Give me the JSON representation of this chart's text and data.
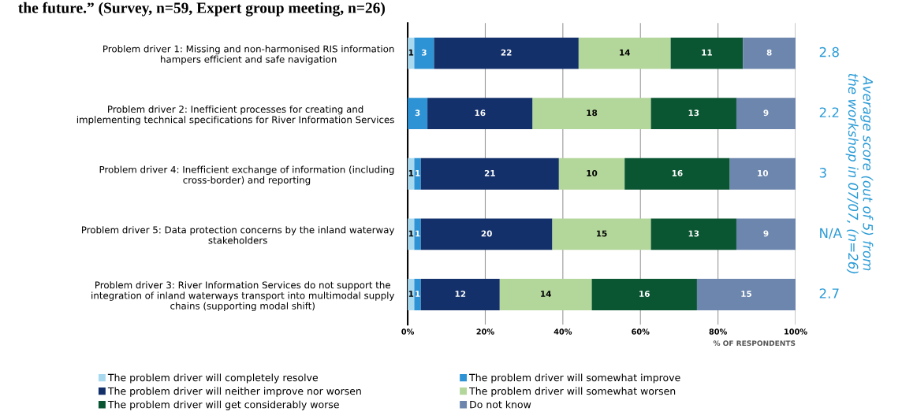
{
  "chart_data": {
    "type": "bar",
    "orientation": "horizontal",
    "stacked": true,
    "data_labels": true,
    "title": "the future.” (Survey, n=59, Expert group meeting, n=26)",
    "categories": [
      "Problem driver 1: Missing and non-harmonised RIS information\nhampers efficient and safe navigation",
      "Problem driver 2: Inefficient processes for creating and\nimplementing technical specifications for River Information Services",
      "Problem driver 4: Inefficient exchange of information (including\ncross-border) and reporting",
      "Problem driver 5: Data protection concerns by the inland waterway\nstakeholders",
      "Problem driver 3: River Information Services do not support the\nintegration of inland waterways transport into multimodal supply\nchains (supporting modal shift)"
    ],
    "series": [
      {
        "name": "The problem driver will completely resolve",
        "color": "#a9d9ef",
        "values": [
          1,
          null,
          1,
          1,
          1
        ]
      },
      {
        "name": "The problem driver will somewhat improve",
        "color": "#2e93d4",
        "values": [
          3,
          3,
          1,
          1,
          1
        ]
      },
      {
        "name": "The problem driver will neither improve nor worsen",
        "color": "#14306a",
        "values": [
          22,
          16,
          21,
          20,
          12
        ]
      },
      {
        "name": "The problem driver will somewhat worsen",
        "color": "#b3d69b",
        "values": [
          14,
          18,
          10,
          15,
          14
        ]
      },
      {
        "name": "The problem driver will get considerably worse",
        "color": "#0b5632",
        "values": [
          11,
          13,
          16,
          13,
          16
        ]
      },
      {
        "name": "Do not know",
        "color": "#6c86ad",
        "values": [
          8,
          9,
          10,
          9,
          15
        ]
      }
    ],
    "xlim": [
      0,
      59
    ],
    "x2lim": [
      0,
      100
    ],
    "x2ticks": [
      {
        "value": 0,
        "label": "0%"
      },
      {
        "value": 20,
        "label": "20%"
      },
      {
        "value": 40,
        "label": "40%"
      },
      {
        "value": 60,
        "label": "60%"
      },
      {
        "value": 80,
        "label": "80%"
      },
      {
        "value": 100,
        "label": "100%"
      }
    ],
    "x2label": "% OF RESPONDENTS",
    "y2label": "Average score (out of 5) from\nthe workshop in 07/07, (n=26)",
    "annotations": [
      "2.8",
      "2.2",
      "3",
      "N/A",
      "2.7"
    ],
    "grid": "x",
    "legend": "bottom"
  }
}
